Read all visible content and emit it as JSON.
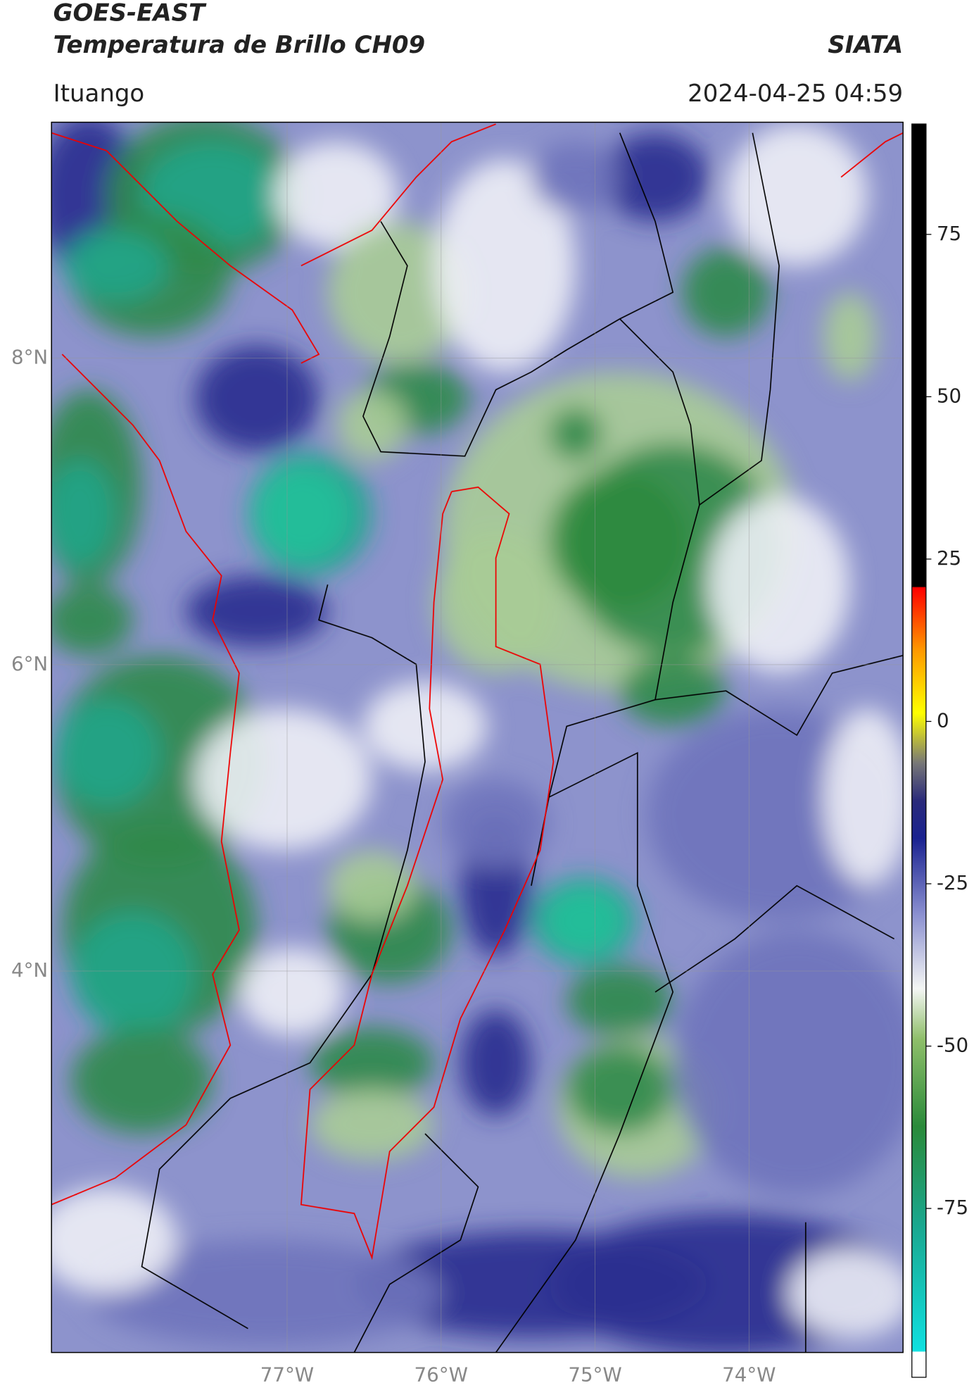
{
  "header": {
    "title": "GOES-EAST",
    "subtitle": "Temperatura de Brillo CH09",
    "location": "Ituango",
    "timestamp": "2024-04-25 04:59",
    "source": "SIATA"
  },
  "map": {
    "xlim": [
      -78.53,
      -73.0
    ],
    "ylim": [
      1.51,
      9.54
    ],
    "xticks": [
      {
        "value": -77,
        "label": "77°W"
      },
      {
        "value": -76,
        "label": "76°W"
      },
      {
        "value": -75,
        "label": "75°W"
      },
      {
        "value": -74,
        "label": "74°W"
      }
    ],
    "yticks": [
      {
        "value": 8,
        "label": "8°N"
      },
      {
        "value": 6,
        "label": "6°N"
      },
      {
        "value": 4,
        "label": "4°N"
      }
    ],
    "grid": true,
    "colorbar": {
      "lim": [
        -101,
        92
      ],
      "ticks": [
        75,
        50,
        25,
        0,
        -25,
        -50,
        -75
      ]
    }
  }
}
